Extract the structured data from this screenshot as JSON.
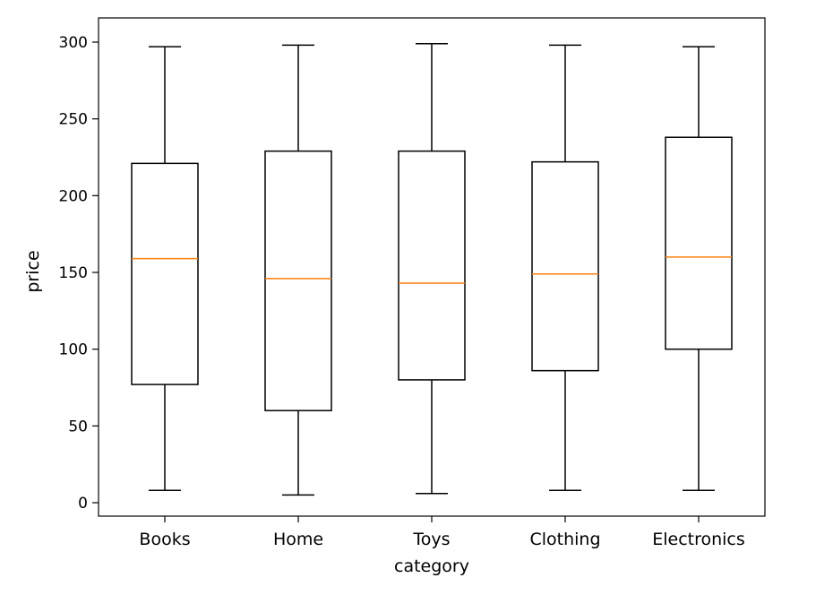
{
  "chart_data": {
    "type": "box",
    "categories": [
      "Books",
      "Home",
      "Toys",
      "Clothing",
      "Electronics"
    ],
    "boxes": [
      {
        "category": "Books",
        "whisker_low": 8,
        "q1": 77,
        "median": 159,
        "q3": 221,
        "whisker_high": 297
      },
      {
        "category": "Home",
        "whisker_low": 5,
        "q1": 60,
        "median": 146,
        "q3": 229,
        "whisker_high": 298
      },
      {
        "category": "Toys",
        "whisker_low": 6,
        "q1": 80,
        "median": 143,
        "q3": 229,
        "whisker_high": 299
      },
      {
        "category": "Clothing",
        "whisker_low": 8,
        "q1": 86,
        "median": 149,
        "q3": 222,
        "whisker_high": 298
      },
      {
        "category": "Electronics",
        "whisker_low": 8,
        "q1": 100,
        "median": 160,
        "q3": 238,
        "whisker_high": 297
      }
    ],
    "xlabel": "category",
    "ylabel": "price",
    "ylim": [
      -9,
      315
    ],
    "yticks": [
      0,
      50,
      100,
      150,
      200,
      250,
      300
    ],
    "grid": false,
    "colors": {
      "box": "#000000",
      "median": "#ff7f0e",
      "axes": "#000000"
    }
  }
}
